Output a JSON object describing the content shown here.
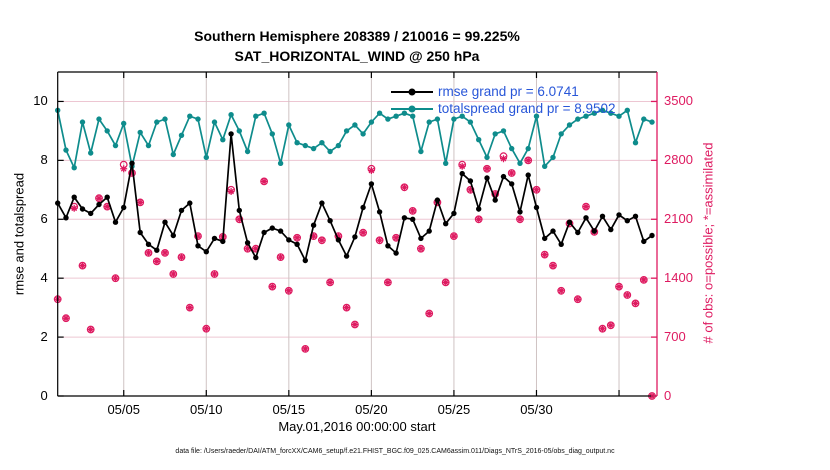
{
  "figure": {
    "title_line1": "Southern Hemisphere 208389 / 210016 = 99.225%",
    "title_line2": "SAT_HORIZONTAL_WIND @ 250 hPa",
    "xlabel": "May.01,2016 00:00:00 start",
    "ylabel_left": "rmse and totalspread",
    "ylabel_right": "# of obs: o=possible; *=assimilated",
    "footer": "data file: /Users/raeder/DAI/ATM_forcXX/CAM6_setup/f.e21.FHIST_BGC.f09_025.CAM6assim.011/Diags_NTrS_2016-05/obs_diag_output.nc"
  },
  "legend": [
    {
      "label": "rmse grand pr = 6.0741",
      "color": "#000000"
    },
    {
      "label": "totalspread grand pr = 8.9502",
      "color": "#0e8c8c"
    }
  ],
  "colors": {
    "rmse_line": "#000000",
    "totalspread_line": "#0e8c8c",
    "obs_marker": "#de1a60",
    "right_axis": "#de1a60",
    "left_axis": "#000000",
    "legend_text": "#2856d8",
    "grid_horizontal": "#edc6d2",
    "grid_vertical": "#cfc3c3"
  },
  "chart_data": {
    "type": "line",
    "title": "Southern Hemisphere 208389 / 210016 = 99.225% | SAT_HORIZONTAL_WIND @ 250 hPa",
    "x_unit": "days since May 1, 2016 00:00:00, 12-hourly points",
    "x_start_day": 0,
    "x_step_days": 0.5,
    "xlim": [
      0,
      36.3
    ],
    "ylim_left": [
      0,
      11
    ],
    "ylim_right": [
      0,
      3850
    ],
    "grid": true,
    "legend_position": "top-center-inside",
    "x_ticks": [
      {
        "day": 4,
        "label": "05/05"
      },
      {
        "day": 9,
        "label": "05/10"
      },
      {
        "day": 14,
        "label": "05/15"
      },
      {
        "day": 19,
        "label": "05/20"
      },
      {
        "day": 24,
        "label": "05/25"
      },
      {
        "day": 29,
        "label": "05/30"
      },
      {
        "day": 34,
        "label": ""
      }
    ],
    "y_ticks_left": [
      0,
      2,
      4,
      6,
      8,
      10
    ],
    "y_ticks_right": [
      0,
      700,
      1400,
      2100,
      2800,
      3500
    ],
    "series": [
      {
        "name": "rmse",
        "axis": "left",
        "marker": "filled-circle",
        "grand_mean": 6.0741,
        "values": [
          6.55,
          6.05,
          6.75,
          6.35,
          6.2,
          6.5,
          6.75,
          5.9,
          6.4,
          7.9,
          5.55,
          5.15,
          4.95,
          5.9,
          5.45,
          6.3,
          6.55,
          5.1,
          4.9,
          5.35,
          5.25,
          8.9,
          6.3,
          5.2,
          4.7,
          5.55,
          5.7,
          5.6,
          5.3,
          5.15,
          4.6,
          5.8,
          6.55,
          5.95,
          5.3,
          4.75,
          5.4,
          6.4,
          7.2,
          6.25,
          5.1,
          4.85,
          6.05,
          6.0,
          5.35,
          5.6,
          6.65,
          5.85,
          6.2,
          7.55,
          7.3,
          6.35,
          7.4,
          6.65,
          7.45,
          7.2,
          6.25,
          7.5,
          6.4,
          5.35,
          5.6,
          5.15,
          5.9,
          5.55,
          6.05,
          5.6,
          6.1,
          5.65,
          6.15,
          5.95,
          6.1,
          5.25,
          5.45
        ]
      },
      {
        "name": "totalspread",
        "axis": "left",
        "marker": "filled-circle",
        "grand_mean": 8.9502,
        "values": [
          9.7,
          8.35,
          7.75,
          9.3,
          8.25,
          9.4,
          9.0,
          8.5,
          9.25,
          7.8,
          8.95,
          8.5,
          9.3,
          9.4,
          8.2,
          8.85,
          9.5,
          9.4,
          8.1,
          9.3,
          8.7,
          9.55,
          9.0,
          8.3,
          9.5,
          9.6,
          8.9,
          7.9,
          9.2,
          8.6,
          8.5,
          8.4,
          8.6,
          8.3,
          8.5,
          9.0,
          9.2,
          8.9,
          9.3,
          9.6,
          9.4,
          9.5,
          9.6,
          9.5,
          8.3,
          9.3,
          9.4,
          7.9,
          9.4,
          9.5,
          9.3,
          8.7,
          8.1,
          8.9,
          9.0,
          8.4,
          7.9,
          8.4,
          9.5,
          7.8,
          8.1,
          8.9,
          9.2,
          9.4,
          9.5,
          9.6,
          9.7,
          9.6,
          9.5,
          9.7,
          8.6,
          9.4,
          9.3
        ]
      },
      {
        "name": "obs_possible",
        "axis": "right",
        "marker": "o",
        "total": 210016,
        "values": [
          1150,
          925,
          2250,
          1550,
          790,
          2350,
          2250,
          1400,
          2750,
          2650,
          2300,
          1700,
          1600,
          1700,
          1450,
          1650,
          1050,
          1900,
          800,
          1450,
          1890,
          2450,
          2100,
          1750,
          1750,
          2550,
          1300,
          1650,
          1250,
          1880,
          560,
          1900,
          1850,
          1350,
          1900,
          1050,
          850,
          1940,
          2700,
          1850,
          1350,
          1880,
          2480,
          2200,
          1750,
          980,
          2300,
          1350,
          1900,
          2750,
          2450,
          2100,
          2700,
          2400,
          2850,
          2650,
          2100,
          2800,
          2450,
          1680,
          1550,
          1250,
          2050,
          1150,
          2250,
          1950,
          800,
          840,
          1300,
          1200,
          1100,
          1380,
          0
        ]
      },
      {
        "name": "obs_assimilated",
        "axis": "right",
        "marker": "*",
        "total": 208389,
        "values": [
          1150,
          925,
          2230,
          1550,
          790,
          2350,
          2250,
          1400,
          2700,
          2650,
          2300,
          1700,
          1600,
          1700,
          1450,
          1650,
          1050,
          1900,
          800,
          1450,
          1890,
          2430,
          2100,
          1750,
          1750,
          2550,
          1300,
          1650,
          1250,
          1880,
          560,
          1900,
          1850,
          1350,
          1900,
          1050,
          850,
          1940,
          2680,
          1850,
          1350,
          1880,
          2480,
          2200,
          1750,
          980,
          2300,
          1350,
          1900,
          2730,
          2450,
          2100,
          2700,
          2400,
          2820,
          2650,
          2100,
          2800,
          2450,
          1680,
          1550,
          1250,
          2050,
          1150,
          2250,
          1950,
          800,
          840,
          1300,
          1200,
          1100,
          1380,
          0
        ]
      }
    ]
  }
}
